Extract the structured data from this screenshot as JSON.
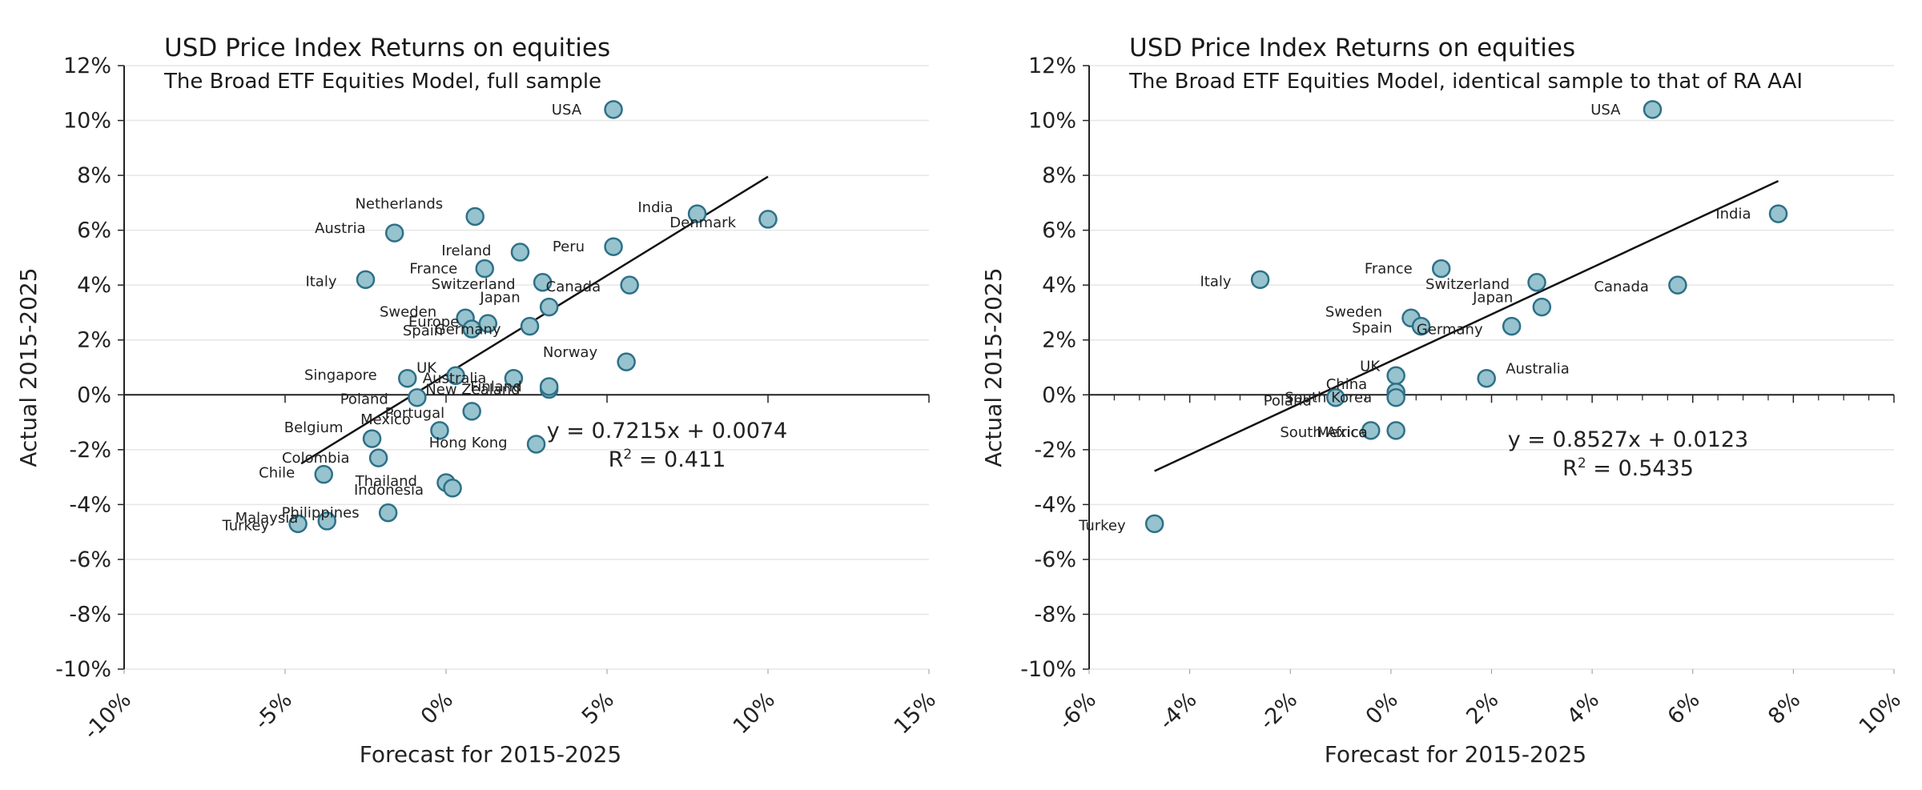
{
  "chart_data": [
    {
      "type": "scatter",
      "title": "USD Price Index Returns on equities",
      "subtitle": "The Broad ETF Equities Model, full sample",
      "xlabel": "Forecast for 2015-2025",
      "ylabel": "Actual 2015-2025",
      "xlim": [
        -0.1,
        0.15
      ],
      "ylim": [
        -0.1,
        0.12
      ],
      "xticks": [
        "-10%",
        "-5%",
        "0%",
        "5%",
        "10%",
        "15%"
      ],
      "yticks": [
        "12%",
        "10%",
        "8%",
        "6%",
        "4%",
        "2%",
        "0%",
        "-2%",
        "-4%",
        "-6%",
        "-8%",
        "-10%"
      ],
      "grid": "horizontal",
      "marker_color": "#96c3ce",
      "marker_edge": "#2e7088",
      "trendline": {
        "slope": 0.7215,
        "intercept": 0.0074,
        "x_range": [
          -0.045,
          0.1
        ]
      },
      "equation": "y = 0.7215x + 0.0074",
      "r2_text": "= 0.411",
      "points": [
        {
          "label": "USA",
          "x": 0.052,
          "y": 0.104
        },
        {
          "label": "India",
          "x": 0.078,
          "y": 0.066
        },
        {
          "label": "Denmark",
          "x": 0.1,
          "y": 0.064
        },
        {
          "label": "Netherlands",
          "x": 0.009,
          "y": 0.065
        },
        {
          "label": "Austria",
          "x": -0.016,
          "y": 0.059
        },
        {
          "label": "Peru",
          "x": 0.052,
          "y": 0.054
        },
        {
          "label": "Ireland",
          "x": 0.023,
          "y": 0.052
        },
        {
          "label": "France",
          "x": 0.012,
          "y": 0.046
        },
        {
          "label": "Italy",
          "x": -0.025,
          "y": 0.042
        },
        {
          "label": "Switzerland",
          "x": 0.03,
          "y": 0.041
        },
        {
          "label": "Canada",
          "x": 0.057,
          "y": 0.04
        },
        {
          "label": "Japan",
          "x": 0.032,
          "y": 0.032
        },
        {
          "label": "Sweden",
          "x": 0.006,
          "y": 0.028
        },
        {
          "label": "Europe",
          "x": 0.013,
          "y": 0.026
        },
        {
          "label": "Germany",
          "x": 0.026,
          "y": 0.025
        },
        {
          "label": "Spain",
          "x": 0.008,
          "y": 0.024
        },
        {
          "label": "Norway",
          "x": 0.056,
          "y": 0.012
        },
        {
          "label": "Singapore",
          "x": -0.012,
          "y": 0.006
        },
        {
          "label": "UK",
          "x": 0.003,
          "y": 0.007
        },
        {
          "label": "Australia",
          "x": 0.021,
          "y": 0.006
        },
        {
          "label": "New Zealand",
          "x": 0.032,
          "y": 0.002
        },
        {
          "label": "Finland",
          "x": 0.032,
          "y": 0.003
        },
        {
          "label": "Poland",
          "x": -0.009,
          "y": -0.001
        },
        {
          "label": "Portugal",
          "x": 0.008,
          "y": -0.006
        },
        {
          "label": "Mexico",
          "x": -0.002,
          "y": -0.013
        },
        {
          "label": "Belgium",
          "x": -0.023,
          "y": -0.016
        },
        {
          "label": "Hong Kong",
          "x": 0.028,
          "y": -0.018
        },
        {
          "label": "Colombia",
          "x": -0.021,
          "y": -0.023
        },
        {
          "label": "Chile",
          "x": -0.038,
          "y": -0.029
        },
        {
          "label": "Thailand",
          "x": 0.0,
          "y": -0.032
        },
        {
          "label": "Indonesia",
          "x": 0.002,
          "y": -0.034
        },
        {
          "label": "Philippines",
          "x": -0.018,
          "y": -0.043
        },
        {
          "label": "Malaysia",
          "x": -0.037,
          "y": -0.046
        },
        {
          "label": "Turkey",
          "x": -0.046,
          "y": -0.047
        }
      ]
    },
    {
      "type": "scatter",
      "title": "USD Price Index Returns on equities",
      "subtitle": "The Broad ETF Equities Model, identical sample to that of RA AAI",
      "xlabel": "Forecast for 2015-2025",
      "ylabel": "Actual 2015-2025",
      "xlim": [
        -0.06,
        0.1
      ],
      "ylim": [
        -0.1,
        0.12
      ],
      "xticks": [
        "-6%",
        "-4%",
        "-2%",
        "0%",
        "2%",
        "4%",
        "6%",
        "8%",
        "10%"
      ],
      "yticks": [
        "12%",
        "10%",
        "8%",
        "6%",
        "4%",
        "2%",
        "0%",
        "-2%",
        "-4%",
        "-6%",
        "-8%",
        "-10%"
      ],
      "grid": "horizontal",
      "marker_color": "#96c3ce",
      "marker_edge": "#2e7088",
      "trendline": {
        "slope": 0.8527,
        "intercept": 0.0123,
        "x_range": [
          -0.047,
          0.077
        ]
      },
      "equation": "y = 0.8527x + 0.0123",
      "r2_text": "= 0.5435",
      "points": [
        {
          "label": "USA",
          "x": 0.052,
          "y": 0.104
        },
        {
          "label": "India",
          "x": 0.077,
          "y": 0.066
        },
        {
          "label": "France",
          "x": 0.01,
          "y": 0.046
        },
        {
          "label": "Italy",
          "x": -0.026,
          "y": 0.042
        },
        {
          "label": "Switzerland",
          "x": 0.029,
          "y": 0.041
        },
        {
          "label": "Canada",
          "x": 0.057,
          "y": 0.04
        },
        {
          "label": "Japan",
          "x": 0.03,
          "y": 0.032
        },
        {
          "label": "Sweden",
          "x": 0.004,
          "y": 0.028
        },
        {
          "label": "Spain",
          "x": 0.006,
          "y": 0.025
        },
        {
          "label": "Germany",
          "x": 0.024,
          "y": 0.025
        },
        {
          "label": "UK",
          "x": 0.001,
          "y": 0.007
        },
        {
          "label": "Australia",
          "x": 0.019,
          "y": 0.006
        },
        {
          "label": "China",
          "x": 0.001,
          "y": 0.001
        },
        {
          "label": "South Korea",
          "x": 0.001,
          "y": -0.001
        },
        {
          "label": "Poland",
          "x": -0.011,
          "y": -0.001
        },
        {
          "label": "South Africa",
          "x": -0.004,
          "y": -0.013
        },
        {
          "label": "Mexico",
          "x": 0.001,
          "y": -0.013
        },
        {
          "label": "Turkey",
          "x": -0.047,
          "y": -0.047
        }
      ]
    }
  ]
}
